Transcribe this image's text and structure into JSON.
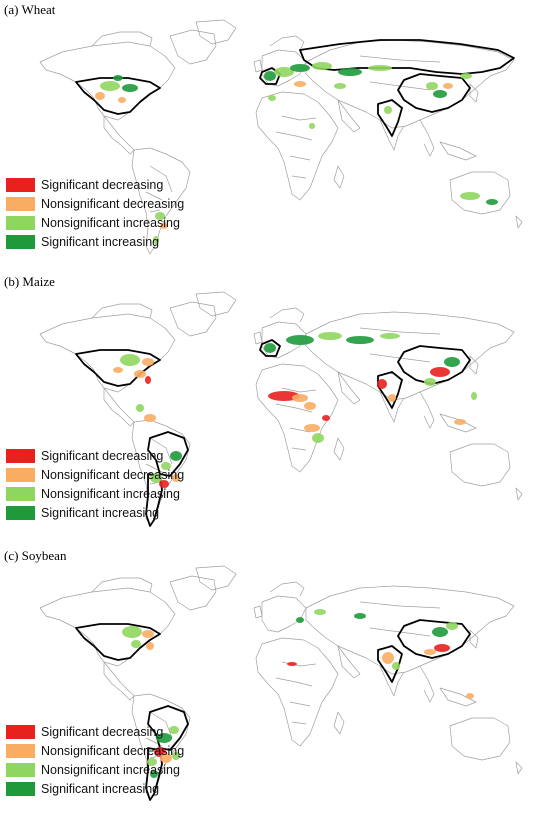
{
  "colors": {
    "sig_dec": "#e8211f",
    "nonsig_dec": "#f9ad63",
    "nonsig_inc": "#8fd65e",
    "sig_inc": "#1e9a3b",
    "outline": "#9a9a9a",
    "highlight": "#000000"
  },
  "legend": [
    {
      "label": "Significant decreasing",
      "color": "#e8211f"
    },
    {
      "label": "Nonsignificant decreasing",
      "color": "#f9ad63"
    },
    {
      "label": "Nonsignificant increasing",
      "color": "#8fd65e"
    },
    {
      "label": "Significant increasing",
      "color": "#1e9a3b"
    }
  ],
  "panels": [
    {
      "title": "(a) Wheat",
      "highlighted_countries": [
        "United States",
        "Russia",
        "China",
        "India",
        "France"
      ]
    },
    {
      "title": "(b) Maize",
      "highlighted_countries": [
        "United States",
        "Brazil",
        "Argentina",
        "China",
        "India",
        "France"
      ]
    },
    {
      "title": "(c) Soybean",
      "highlighted_countries": [
        "United States",
        "Brazil",
        "Argentina",
        "China",
        "India"
      ]
    }
  ]
}
